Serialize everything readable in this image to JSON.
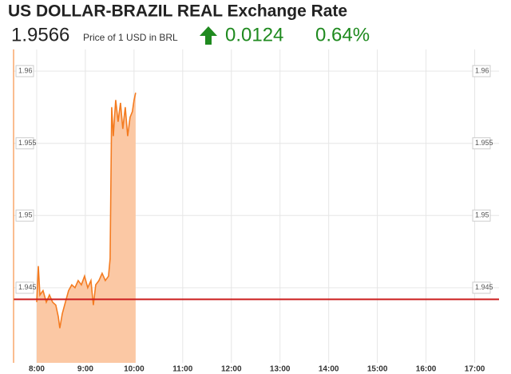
{
  "chart_data": {
    "type": "area",
    "title": "US DOLLAR-BRAZIL REAL Exchange Rate",
    "quote": {
      "price": "1.9566",
      "unit_text": "Price of 1 USD in BRL",
      "change": "0.0124",
      "change_percent": "0.64%",
      "color": "#1f8a1f"
    },
    "series": [
      {
        "color": "#f47b20",
        "fill": "#fbc8a4",
        "x": [
          8.0,
          8.033,
          8.066,
          8.131,
          8.197,
          8.262,
          8.328,
          8.393,
          8.443,
          8.475,
          8.525,
          8.59,
          8.656,
          8.721,
          8.787,
          8.852,
          8.918,
          8.984,
          9.049,
          9.115,
          9.164,
          9.213,
          9.279,
          9.344,
          9.41,
          9.475,
          9.508,
          9.541,
          9.574,
          9.623,
          9.672,
          9.721,
          9.77,
          9.82,
          9.869,
          9.918,
          9.967,
          10.0,
          10.033
        ],
        "values": [
          1.944,
          1.9465,
          1.9445,
          1.9448,
          1.944,
          1.9445,
          1.944,
          1.9438,
          1.943,
          1.9422,
          1.9432,
          1.944,
          1.9448,
          1.9452,
          1.945,
          1.9455,
          1.9452,
          1.9458,
          1.945,
          1.9455,
          1.9438,
          1.9452,
          1.9455,
          1.946,
          1.9455,
          1.9458,
          1.947,
          1.9575,
          1.9555,
          1.958,
          1.9565,
          1.9578,
          1.956,
          1.9575,
          1.9555,
          1.9568,
          1.9572,
          1.958,
          1.9585
        ]
      }
    ],
    "reference_value": 1.9442,
    "reference_color": "#cc1f1f",
    "xlim": [
      7.525,
      17.5
    ],
    "xticks": [
      {
        "value": 8,
        "label": "8:00"
      },
      {
        "value": 9,
        "label": "9:00"
      },
      {
        "value": 10,
        "label": "10:00"
      },
      {
        "value": 11,
        "label": "11:00"
      },
      {
        "value": 12,
        "label": "12:00"
      },
      {
        "value": 13,
        "label": "13:00"
      },
      {
        "value": 14,
        "label": "14:00"
      },
      {
        "value": 15,
        "label": "15:00"
      },
      {
        "value": 16,
        "label": "16:00"
      },
      {
        "value": 17,
        "label": "17:00"
      }
    ],
    "ylim": [
      1.9398,
      1.9615
    ],
    "yticks": [
      1.945,
      1.95,
      1.955,
      1.96
    ],
    "grid": true
  }
}
